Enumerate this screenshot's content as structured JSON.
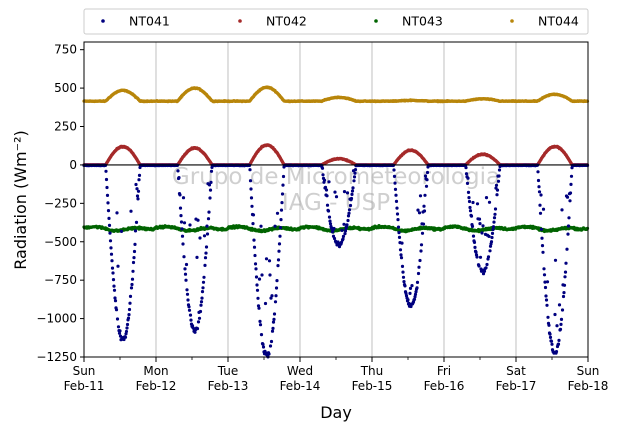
{
  "chart_data": {
    "type": "scatter",
    "xlabel": "Day",
    "ylabel": "Radiation (Wm⁻²)",
    "ylim": [
      -1250,
      800
    ],
    "xlim": [
      0,
      7
    ],
    "yticks": [
      -1250,
      -1000,
      -750,
      -500,
      -250,
      0,
      250,
      500,
      750
    ],
    "yticks_labels": [
      "−1250",
      "−1000",
      "−750",
      "−500",
      "−250",
      "0",
      "250",
      "500",
      "750"
    ],
    "xticks": [
      {
        "x": 0,
        "day": "Sun",
        "date": "Feb-11"
      },
      {
        "x": 1,
        "day": "Mon",
        "date": "Feb-12"
      },
      {
        "x": 2,
        "day": "Tue",
        "date": "Feb-13"
      },
      {
        "x": 3,
        "day": "Wed",
        "date": "Feb-14"
      },
      {
        "x": 4,
        "day": "Thu",
        "date": "Feb-15"
      },
      {
        "x": 5,
        "day": "Fri",
        "date": "Feb-16"
      },
      {
        "x": 6,
        "day": "Sat",
        "date": "Feb-17"
      },
      {
        "x": 7,
        "day": "Sun",
        "date": "Feb-18"
      }
    ],
    "grid": "vertical",
    "zero_line": true,
    "legend_position": "top",
    "watermark": [
      "Grupo de Micrometeorologia",
      "IAG - USP"
    ],
    "series": [
      {
        "name": "NT041",
        "color": "#00007f",
        "daily_min": [
          -1140,
          -1080,
          -1250,
          -520,
          -920,
          -700,
          -1220
        ],
        "description": "near 0 at night, strongly negative during daytime"
      },
      {
        "name": "NT042",
        "color": "#a52a2a",
        "daily_peak": [
          120,
          110,
          130,
          40,
          95,
          70,
          120
        ],
        "description": "near 0 at night, positive bumps during daytime"
      },
      {
        "name": "NT043",
        "color": "#006400",
        "base": -410,
        "description": "nearly constant around -400"
      },
      {
        "name": "NT044",
        "color": "#b8860b",
        "daily_peak": [
          485,
          500,
          505,
          440,
          420,
          430,
          460
        ],
        "base": 415,
        "description": "around 410-420 with daytime bumps"
      }
    ]
  }
}
